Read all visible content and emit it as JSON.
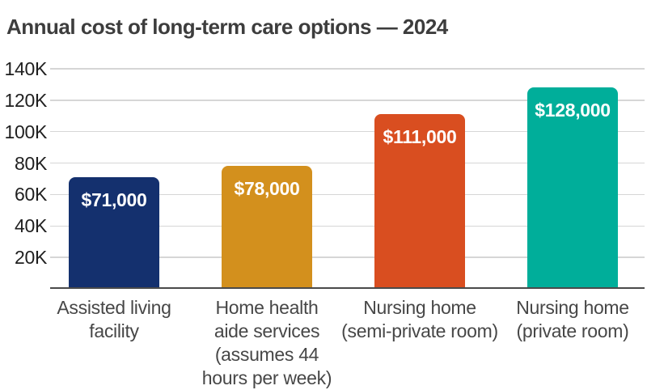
{
  "title": "Annual cost of long-term care options — 2024",
  "chart_data": {
    "type": "bar",
    "title": "Annual cost of long-term care options — 2024",
    "categories": [
      "Assisted living\nfacility",
      "Home health\naide services\n(assumes 44\nhours per week)",
      "Nursing home\n(semi-private room)",
      "Nursing home\n(private room)"
    ],
    "values": [
      71000,
      78000,
      111000,
      128000
    ],
    "value_labels": [
      "$71,000",
      "$78,000",
      "$111,000",
      "$128,000"
    ],
    "bar_colors": [
      "#14306e",
      "#d3901d",
      "#d94e20",
      "#00ae9a"
    ],
    "xlabel": "",
    "ylabel": "",
    "ylim": [
      0,
      145000
    ],
    "yticks": [
      20000,
      40000,
      60000,
      80000,
      100000,
      120000,
      140000
    ],
    "ytick_labels": [
      "20K",
      "40K",
      "60K",
      "80K",
      "100K",
      "120K",
      "140K"
    ],
    "grid": true,
    "grid_axis": "y",
    "legend": false,
    "value_labels_position": "inside-top",
    "value_labels_color": "#ffffff"
  },
  "colors": {
    "background": "#ffffff",
    "title_text": "#3d3d3d",
    "ytick_text": "#1f1f1f",
    "xtick_text": "#474747",
    "gridline": "#d6d6d6",
    "axis_line": "#4a4a4a"
  }
}
